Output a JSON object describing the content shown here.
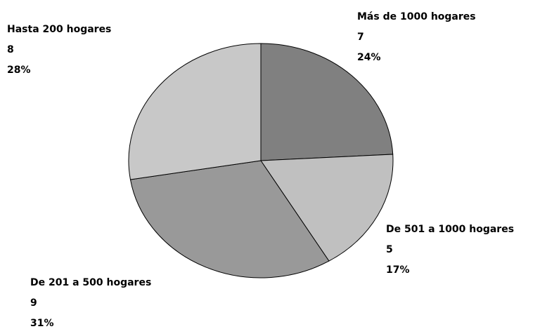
{
  "chart_data": {
    "type": "pie",
    "categories": [
      "Más de 1000 hogares",
      "De 501 a 1000 hogares",
      "De 201 a 500 hogares",
      "Hasta 200 hogares"
    ],
    "values": [
      7,
      5,
      9,
      8
    ],
    "percent_labels": [
      "24%",
      "17%",
      "31%",
      "28%"
    ],
    "colors": [
      "#808080",
      "#c0c0c0",
      "#999999",
      "#c8c8c8"
    ]
  }
}
